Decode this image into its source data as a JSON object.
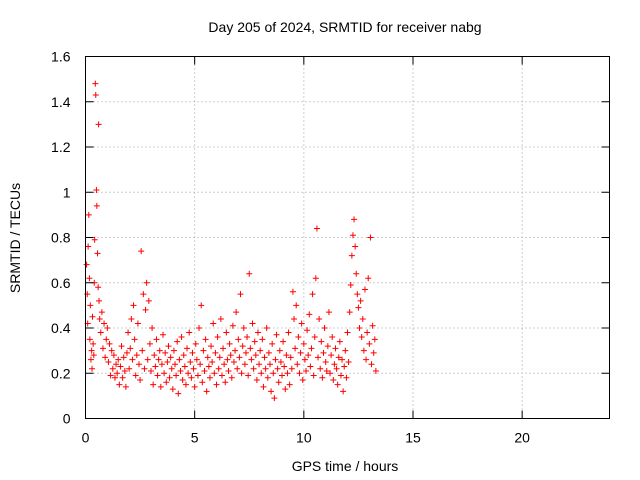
{
  "chart_data": {
    "type": "scatter",
    "title": "Day 205 of 2024, SRMTID for receiver nabg",
    "xlabel": "GPS time / hours",
    "ylabel": "SRMTID / TECUs",
    "xlim": [
      0,
      24
    ],
    "ylim": [
      0,
      1.6
    ],
    "x_ticks": [
      0,
      5,
      10,
      15,
      20
    ],
    "x_tick_labels": [
      "0",
      "5",
      "10",
      "15",
      "20"
    ],
    "y_ticks": [
      0,
      0.2,
      0.4,
      0.6,
      0.8,
      1.0,
      1.2,
      1.4,
      1.6
    ],
    "y_tick_labels": [
      "0",
      "0.2",
      "0.4",
      "0.6",
      "0.8",
      "1",
      "1.2",
      "1.4",
      "1.6"
    ],
    "grid": true,
    "marker": "+",
    "color": "#ff0000",
    "series": [
      {
        "name": "SRMTID",
        "points": [
          [
            0.05,
            0.68
          ],
          [
            0.08,
            0.55
          ],
          [
            0.1,
            0.42
          ],
          [
            0.12,
            0.76
          ],
          [
            0.15,
            0.9
          ],
          [
            0.18,
            0.62
          ],
          [
            0.2,
            0.35
          ],
          [
            0.22,
            0.5
          ],
          [
            0.25,
            0.26
          ],
          [
            0.28,
            0.3
          ],
          [
            0.3,
            0.22
          ],
          [
            0.32,
            0.45
          ],
          [
            0.35,
            0.33
          ],
          [
            0.38,
            0.28
          ],
          [
            0.4,
            0.6
          ],
          [
            0.42,
            0.79
          ],
          [
            0.45,
            1.48
          ],
          [
            0.47,
            1.43
          ],
          [
            0.5,
            1.01
          ],
          [
            0.52,
            0.94
          ],
          [
            0.55,
            0.73
          ],
          [
            0.58,
            0.58
          ],
          [
            0.6,
            1.3
          ],
          [
            0.62,
            0.52
          ],
          [
            0.65,
            0.44
          ],
          [
            0.7,
            0.38
          ],
          [
            0.75,
            0.47
          ],
          [
            0.8,
            0.31
          ],
          [
            0.85,
            0.42
          ],
          [
            0.9,
            0.27
          ],
          [
            0.95,
            0.35
          ],
          [
            1.0,
            0.4
          ],
          [
            1.05,
            0.25
          ],
          [
            1.1,
            0.33
          ],
          [
            1.15,
            0.19
          ],
          [
            1.2,
            0.3
          ],
          [
            1.25,
            0.22
          ],
          [
            1.3,
            0.28
          ],
          [
            1.35,
            0.18
          ],
          [
            1.4,
            0.24
          ],
          [
            1.45,
            0.2
          ],
          [
            1.5,
            0.26
          ],
          [
            1.55,
            0.15
          ],
          [
            1.6,
            0.23
          ],
          [
            1.65,
            0.32
          ],
          [
            1.7,
            0.18
          ],
          [
            1.75,
            0.27
          ],
          [
            1.8,
            0.21
          ],
          [
            1.85,
            0.14
          ],
          [
            1.9,
            0.29
          ],
          [
            1.95,
            0.38
          ],
          [
            2.0,
            0.22
          ],
          [
            2.05,
            0.31
          ],
          [
            2.1,
            0.44
          ],
          [
            2.15,
            0.26
          ],
          [
            2.2,
            0.5
          ],
          [
            2.25,
            0.35
          ],
          [
            2.3,
            0.19
          ],
          [
            2.35,
            0.28
          ],
          [
            2.4,
            0.42
          ],
          [
            2.45,
            0.24
          ],
          [
            2.5,
            0.17
          ],
          [
            2.55,
            0.74
          ],
          [
            2.6,
            0.3
          ],
          [
            2.65,
            0.55
          ],
          [
            2.7,
            0.22
          ],
          [
            2.75,
            0.48
          ],
          [
            2.8,
            0.6
          ],
          [
            2.85,
            0.26
          ],
          [
            2.9,
            0.52
          ],
          [
            2.95,
            0.33
          ],
          [
            3.0,
            0.21
          ],
          [
            3.05,
            0.4
          ],
          [
            3.1,
            0.15
          ],
          [
            3.15,
            0.28
          ],
          [
            3.2,
            0.23
          ],
          [
            3.25,
            0.35
          ],
          [
            3.3,
            0.19
          ],
          [
            3.35,
            0.26
          ],
          [
            3.4,
            0.3
          ],
          [
            3.45,
            0.14
          ],
          [
            3.5,
            0.24
          ],
          [
            3.55,
            0.37
          ],
          [
            3.6,
            0.2
          ],
          [
            3.65,
            0.29
          ],
          [
            3.7,
            0.16
          ],
          [
            3.75,
            0.25
          ],
          [
            3.8,
            0.32
          ],
          [
            3.85,
            0.18
          ],
          [
            3.9,
            0.27
          ],
          [
            3.95,
            0.22
          ],
          [
            4.0,
            0.13
          ],
          [
            4.05,
            0.3
          ],
          [
            4.1,
            0.24
          ],
          [
            4.15,
            0.19
          ],
          [
            4.2,
            0.34
          ],
          [
            4.25,
            0.11
          ],
          [
            4.3,
            0.26
          ],
          [
            4.35,
            0.21
          ],
          [
            4.4,
            0.36
          ],
          [
            4.45,
            0.17
          ],
          [
            4.5,
            0.28
          ],
          [
            4.55,
            0.23
          ],
          [
            4.6,
            0.15
          ],
          [
            4.65,
            0.31
          ],
          [
            4.7,
            0.2
          ],
          [
            4.75,
            0.38
          ],
          [
            4.8,
            0.25
          ],
          [
            4.85,
            0.18
          ],
          [
            4.9,
            0.29
          ],
          [
            4.95,
            0.22
          ],
          [
            5.0,
            0.14
          ],
          [
            5.05,
            0.33
          ],
          [
            5.1,
            0.26
          ],
          [
            5.15,
            0.19
          ],
          [
            5.2,
            0.4
          ],
          [
            5.25,
            0.24
          ],
          [
            5.3,
            0.5
          ],
          [
            5.35,
            0.16
          ],
          [
            5.4,
            0.3
          ],
          [
            5.45,
            0.21
          ],
          [
            5.5,
            0.35
          ],
          [
            5.55,
            0.12
          ],
          [
            5.6,
            0.27
          ],
          [
            5.65,
            0.23
          ],
          [
            5.7,
            0.18
          ],
          [
            5.75,
            0.32
          ],
          [
            5.8,
            0.25
          ],
          [
            5.85,
            0.42
          ],
          [
            5.9,
            0.2
          ],
          [
            5.95,
            0.29
          ],
          [
            6.0,
            0.15
          ],
          [
            6.05,
            0.36
          ],
          [
            6.1,
            0.22
          ],
          [
            6.15,
            0.27
          ],
          [
            6.2,
            0.44
          ],
          [
            6.25,
            0.19
          ],
          [
            6.3,
            0.31
          ],
          [
            6.35,
            0.24
          ],
          [
            6.4,
            0.16
          ],
          [
            6.45,
            0.38
          ],
          [
            6.5,
            0.26
          ],
          [
            6.55,
            0.21
          ],
          [
            6.6,
            0.33
          ],
          [
            6.65,
            0.28
          ],
          [
            6.7,
            0.18
          ],
          [
            6.75,
            0.41
          ],
          [
            6.8,
            0.25
          ],
          [
            6.85,
            0.3
          ],
          [
            6.9,
            0.47
          ],
          [
            6.95,
            0.22
          ],
          [
            7.0,
            0.35
          ],
          [
            7.05,
            0.27
          ],
          [
            7.1,
            0.55
          ],
          [
            7.15,
            0.2
          ],
          [
            7.2,
            0.32
          ],
          [
            7.25,
            0.4
          ],
          [
            7.3,
            0.24
          ],
          [
            7.35,
            0.29
          ],
          [
            7.4,
            0.36
          ],
          [
            7.45,
            0.19
          ],
          [
            7.5,
            0.64
          ],
          [
            7.55,
            0.31
          ],
          [
            7.6,
            0.26
          ],
          [
            7.65,
            0.42
          ],
          [
            7.7,
            0.22
          ],
          [
            7.75,
            0.34
          ],
          [
            7.8,
            0.28
          ],
          [
            7.85,
            0.17
          ],
          [
            7.9,
            0.38
          ],
          [
            7.95,
            0.24
          ],
          [
            8.0,
            0.3
          ],
          [
            8.05,
            0.2
          ],
          [
            8.1,
            0.35
          ],
          [
            8.15,
            0.14
          ],
          [
            8.2,
            0.27
          ],
          [
            8.25,
            0.22
          ],
          [
            8.3,
            0.4
          ],
          [
            8.35,
            0.18
          ],
          [
            8.4,
            0.29
          ],
          [
            8.45,
            0.24
          ],
          [
            8.5,
            0.12
          ],
          [
            8.55,
            0.33
          ],
          [
            8.6,
            0.2
          ],
          [
            8.65,
            0.09
          ],
          [
            8.7,
            0.26
          ],
          [
            8.75,
            0.37
          ],
          [
            8.8,
            0.22
          ],
          [
            8.85,
            0.16
          ],
          [
            8.9,
            0.3
          ],
          [
            8.95,
            0.25
          ],
          [
            9.0,
            0.19
          ],
          [
            9.05,
            0.34
          ],
          [
            9.1,
            0.23
          ],
          [
            9.15,
            0.13
          ],
          [
            9.2,
            0.28
          ],
          [
            9.25,
            0.2
          ],
          [
            9.3,
            0.38
          ],
          [
            9.35,
            0.15
          ],
          [
            9.4,
            0.27
          ],
          [
            9.45,
            0.22
          ],
          [
            9.5,
            0.56
          ],
          [
            9.55,
            0.44
          ],
          [
            9.6,
            0.31
          ],
          [
            9.65,
            0.5
          ],
          [
            9.7,
            0.24
          ],
          [
            9.75,
            0.36
          ],
          [
            9.8,
            0.2
          ],
          [
            9.85,
            0.29
          ],
          [
            9.9,
            0.42
          ],
          [
            9.95,
            0.17
          ],
          [
            10.0,
            0.33
          ],
          [
            10.05,
            0.26
          ],
          [
            10.1,
            0.21
          ],
          [
            10.15,
            0.39
          ],
          [
            10.2,
            0.28
          ],
          [
            10.25,
            0.46
          ],
          [
            10.3,
            0.23
          ],
          [
            10.35,
            0.31
          ],
          [
            10.4,
            0.55
          ],
          [
            10.45,
            0.19
          ],
          [
            10.5,
            0.36
          ],
          [
            10.55,
            0.62
          ],
          [
            10.6,
            0.84
          ],
          [
            10.65,
            0.27
          ],
          [
            10.7,
            0.44
          ],
          [
            10.75,
            0.22
          ],
          [
            10.8,
            0.34
          ],
          [
            10.85,
            0.18
          ],
          [
            10.9,
            0.29
          ],
          [
            10.95,
            0.4
          ],
          [
            11.0,
            0.25
          ],
          [
            11.05,
            0.21
          ],
          [
            11.1,
            0.32
          ],
          [
            11.15,
            0.47
          ],
          [
            11.2,
            0.2
          ],
          [
            11.25,
            0.28
          ],
          [
            11.3,
            0.36
          ],
          [
            11.35,
            0.17
          ],
          [
            11.4,
            0.24
          ],
          [
            11.45,
            0.31
          ],
          [
            11.5,
            0.22
          ],
          [
            11.55,
            0.15
          ],
          [
            11.6,
            0.27
          ],
          [
            11.65,
            0.34
          ],
          [
            11.7,
            0.19
          ],
          [
            11.75,
            0.26
          ],
          [
            11.8,
            0.12
          ],
          [
            11.85,
            0.23
          ],
          [
            11.9,
            0.3
          ],
          [
            11.95,
            0.18
          ],
          [
            12.0,
            0.38
          ],
          [
            12.05,
            0.25
          ],
          [
            12.1,
            0.47
          ],
          [
            12.15,
            0.59
          ],
          [
            12.2,
            0.72
          ],
          [
            12.25,
            0.81
          ],
          [
            12.3,
            0.88
          ],
          [
            12.35,
            0.76
          ],
          [
            12.4,
            0.64
          ],
          [
            12.45,
            0.55
          ],
          [
            12.5,
            0.49
          ],
          [
            12.55,
            0.4
          ],
          [
            12.6,
            0.52
          ],
          [
            12.65,
            0.36
          ],
          [
            12.7,
            0.44
          ],
          [
            12.75,
            0.3
          ],
          [
            12.8,
            0.57
          ],
          [
            12.85,
            0.26
          ],
          [
            12.9,
            0.38
          ],
          [
            12.95,
            0.62
          ],
          [
            13.0,
            0.33
          ],
          [
            13.05,
            0.8
          ],
          [
            13.1,
            0.24
          ],
          [
            13.15,
            0.41
          ],
          [
            13.2,
            0.29
          ],
          [
            13.25,
            0.35
          ],
          [
            13.3,
            0.21
          ]
        ]
      }
    ]
  }
}
